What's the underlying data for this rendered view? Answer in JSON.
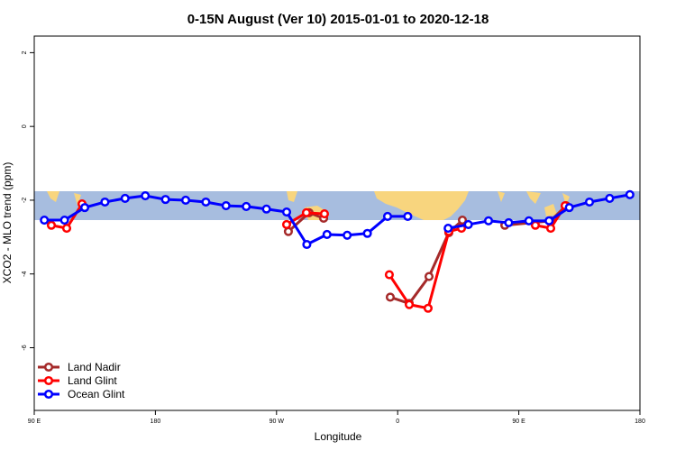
{
  "chart_data": {
    "type": "line",
    "title": "0-15N August (Ver 10)   2015-01-01 to 2020-12-18",
    "x_label": "Longitude",
    "y_label": "XCO2 - MLO trend (ppm)",
    "xlim": [
      90,
      540
    ],
    "ylim": [
      -7.7,
      2.45
    ],
    "xticks": [
      {
        "value": 90,
        "label": "90 E"
      },
      180,
      {
        "value": 270,
        "label": "90 W"
      },
      {
        "value": 360,
        "label": "0"
      },
      {
        "value": 450,
        "label": "90 E"
      },
      {
        "value": 540,
        "label": "180"
      }
    ],
    "yticks": [
      -6,
      -4,
      -2,
      0,
      2
    ],
    "legend": "bottom-left",
    "series": [
      {
        "name": "Land Nadir",
        "color": "#a52a2a",
        "x": [
          278.8,
          294.2,
          305,
          330,
          354.5,
          368.6,
          383.3,
          398,
          408.1,
          420,
          439.6,
          473.7,
          485.1
        ],
        "values": [
          -2.85,
          -2.34,
          -2.49,
          null,
          -4.63,
          -4.8,
          -4.07,
          -2.88,
          -2.54,
          null,
          -2.68,
          -2.56,
          -2.15
        ]
      },
      {
        "name": "Land Glint",
        "color": "#ff0000",
        "x": [
          102.7,
          114.1,
          125.5,
          200,
          277.5,
          292.2,
          305.6,
          330,
          353.8,
          368.6,
          382.6,
          398,
          407.4,
          430,
          462.3,
          473.7,
          484.4
        ],
        "values": [
          -2.68,
          -2.76,
          -2.1,
          null,
          -2.66,
          -2.34,
          -2.37,
          null,
          -4.02,
          -4.83,
          -4.93,
          -2.85,
          -2.76,
          null,
          -2.68,
          -2.76,
          -2.15
        ]
      },
      {
        "name": "Ocean Glint",
        "color": "#0000ff",
        "x": [
          97.5,
          112.5,
          127.5,
          142.5,
          157.5,
          172.5,
          187.5,
          202.5,
          217.5,
          232.5,
          247.5,
          262.5,
          277.5,
          292.5,
          307.5,
          322.5,
          337.5,
          352.5,
          367.5,
          382.5,
          397.5,
          412.5,
          427.5,
          442.5,
          457.5,
          472.5,
          487.5,
          502.5,
          517.5,
          532.5
        ],
        "values": [
          -2.54,
          -2.54,
          -2.2,
          -2.05,
          -1.95,
          -1.88,
          -1.98,
          -2.0,
          -2.05,
          -2.15,
          -2.17,
          -2.24,
          -2.32,
          -3.2,
          -2.93,
          -2.95,
          -2.9,
          -2.44,
          -2.44,
          null,
          -2.76,
          -2.66,
          -2.56,
          -2.61,
          -2.56,
          -2.56,
          -2.2,
          -2.05,
          -1.95,
          -1.85
        ]
      }
    ]
  }
}
